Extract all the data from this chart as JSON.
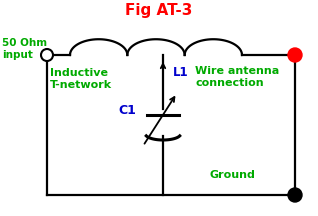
{
  "title": "Fig AT-3",
  "title_color": "red",
  "title_fontsize": 11,
  "bg_color": "white",
  "line_color": "black",
  "green_color": "#00aa00",
  "blue_color": "#0000cc",
  "label_50ohm": "50 Ohm\ninput",
  "label_inductive": "Inductive\nT-network",
  "label_L1": "L1",
  "label_wire": "Wire antenna\nconnection",
  "label_C1": "C1",
  "label_ground": "Ground",
  "figw": 3.18,
  "figh": 2.16,
  "dpi": 100
}
